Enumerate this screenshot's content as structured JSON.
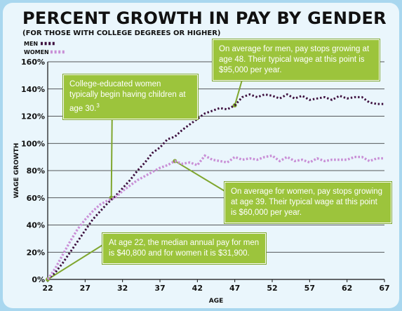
{
  "title": "PERCENT GROWTH IN PAY BY GENDER",
  "subtitle": "(FOR THOSE WITH COLLEGE DEGREES OR HIGHER)",
  "colors": {
    "men": "#3d0f3e",
    "women": "#c98fd6",
    "callout": "#9cc43c",
    "background": "#eaf6fc",
    "frame": "#a9d7ef"
  },
  "chart_data": {
    "type": "line",
    "xlabel": "AGE",
    "ylabel": "WAGE GROWTH",
    "xlim": [
      22,
      67
    ],
    "ylim": [
      0,
      160
    ],
    "x_ticks": [
      "22",
      "27",
      "32",
      "37",
      "42",
      "47",
      "52",
      "57",
      "62",
      "67"
    ],
    "y_ticks": [
      "0%",
      "20%",
      "40%",
      "60%",
      "80%",
      "100%",
      "120%",
      "140%",
      "160%"
    ],
    "grid": "horizontal",
    "legend": "top-left",
    "series": [
      {
        "name": "MEN",
        "style": "dotted",
        "x": [
          22,
          23,
          24,
          25,
          26,
          27,
          28,
          29,
          30,
          31,
          32,
          33,
          34,
          35,
          36,
          37,
          38,
          39,
          40,
          41,
          42,
          43,
          44,
          45,
          46,
          47,
          48,
          49,
          50,
          51,
          52,
          53,
          54,
          55,
          56,
          57,
          58,
          59,
          60,
          61,
          62,
          63,
          64,
          65,
          66,
          67
        ],
        "values": [
          0,
          5,
          12,
          20,
          28,
          36,
          44,
          50,
          56,
          61,
          67,
          73,
          80,
          86,
          93,
          97,
          103,
          105,
          110,
          114,
          118,
          122,
          124,
          126,
          125,
          128,
          134,
          136,
          134,
          136,
          135,
          133,
          136,
          133,
          135,
          132,
          133,
          134,
          132,
          135,
          133,
          134,
          134,
          130,
          129,
          129
        ]
      },
      {
        "name": "WOMEN",
        "style": "dotted",
        "x": [
          22,
          23,
          24,
          25,
          26,
          27,
          28,
          29,
          30,
          31,
          32,
          33,
          34,
          35,
          36,
          37,
          38,
          39,
          40,
          41,
          42,
          43,
          44,
          45,
          46,
          47,
          48,
          49,
          50,
          51,
          52,
          53,
          54,
          55,
          56,
          57,
          58,
          59,
          60,
          61,
          62,
          63,
          64,
          65,
          66,
          67
        ],
        "values": [
          0,
          8,
          18,
          28,
          37,
          44,
          50,
          55,
          58,
          60,
          65,
          69,
          73,
          76,
          79,
          82,
          84,
          87,
          85,
          86,
          84,
          91,
          88,
          87,
          86,
          90,
          88,
          89,
          88,
          90,
          91,
          87,
          90,
          87,
          88,
          86,
          89,
          87,
          88,
          88,
          88,
          90,
          90,
          87,
          89,
          89
        ]
      }
    ],
    "annotations": [
      {
        "text": "College-educated women typically begin having children at age 30.",
        "note_marker": "3",
        "x": 30.5,
        "y": 60
      },
      {
        "text": "On average for men, pay stops growing at age 48. Their typical wage at this point is $95,000 per year.",
        "x": 47,
        "y": 128
      },
      {
        "text": "On average for women, pay stops growing at age 39. Their typical wage at this point is $60,000 per year.",
        "x": 39,
        "y": 87
      },
      {
        "text": "At age 22, the median annual pay for men is $40,800 and for women it is $31,900.",
        "x": 22,
        "y": 0
      }
    ]
  }
}
